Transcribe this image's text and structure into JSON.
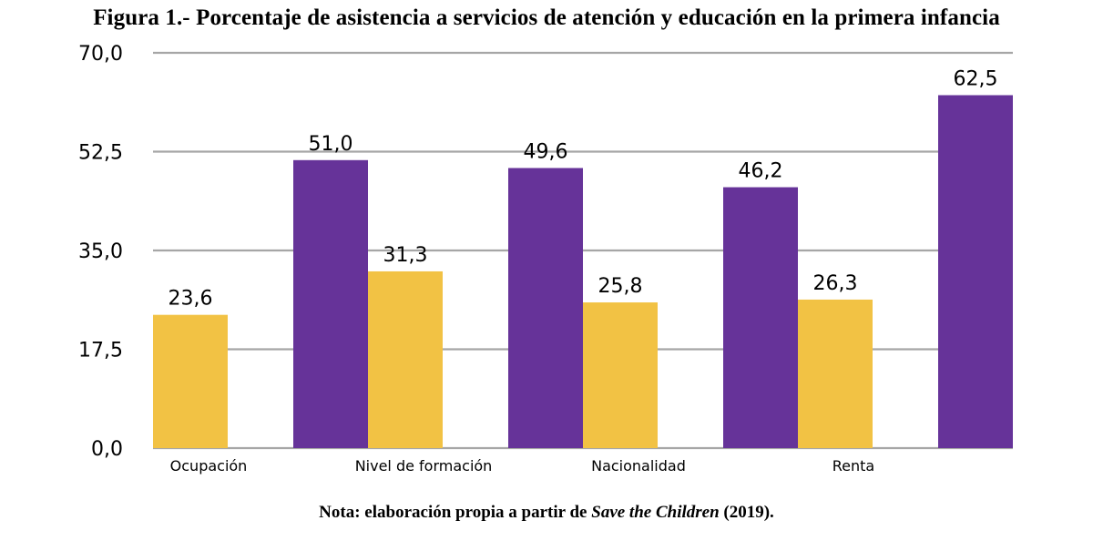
{
  "chart_data": {
    "type": "bar",
    "title": "Figura 1.- Porcentaje de asistencia a servicios de atención y educación en la primera infancia",
    "categories": [
      "Ocupación",
      "Nivel de formación",
      "Nacionalidad",
      "Renta"
    ],
    "series": [
      {
        "values": [
          23.6,
          31.3,
          25.8,
          26.3
        ],
        "value_labels": [
          "23,6",
          "31,3",
          "25,8",
          "26,3"
        ]
      },
      {
        "values": [
          51.0,
          49.6,
          46.2,
          62.5
        ],
        "value_labels": [
          "51,0",
          "49,6",
          "46,2",
          "62,5"
        ]
      }
    ],
    "ylim": [
      0,
      70
    ],
    "yticks": [
      0,
      17.5,
      35,
      52.5,
      70
    ],
    "ytick_labels": [
      "0,0",
      "17,5",
      "35,0",
      "52,5",
      "70,0"
    ],
    "xlabel": "",
    "ylabel": "",
    "grid": true,
    "legend": "none",
    "colors": {
      "series_1": "#F2C244",
      "series_2": "#663399",
      "grid": "#A6A6A6"
    }
  },
  "note": {
    "prefix": "Nota: elaboración propia a partir de ",
    "source": "Save the Children",
    "suffix": " (2019)."
  }
}
